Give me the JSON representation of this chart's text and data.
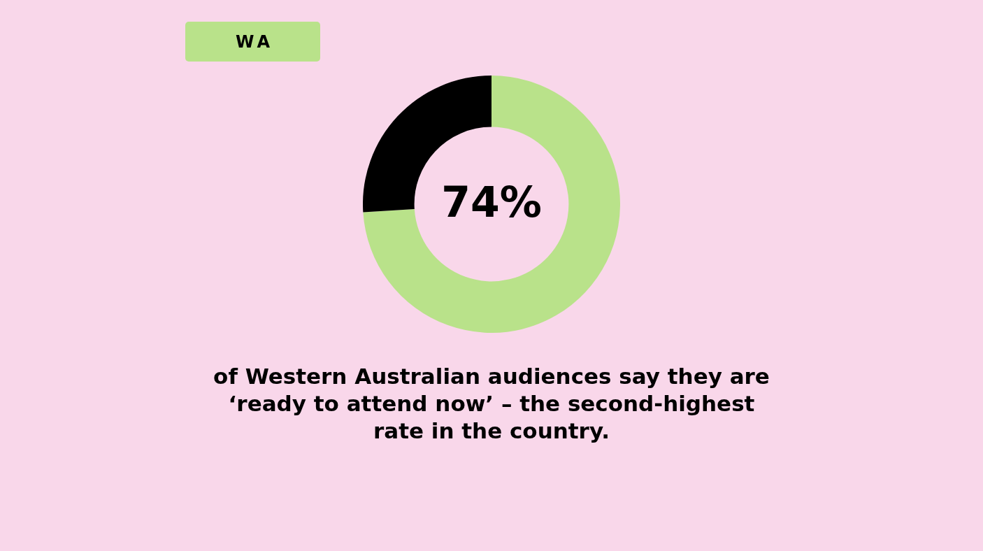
{
  "chart_data": {
    "type": "donut",
    "title": "WA",
    "categories": [
      null,
      null
    ],
    "values": [
      74,
      26
    ],
    "colors": [
      "#b9e28a",
      "#000000"
    ],
    "value_labels": [
      "74%",
      null
    ],
    "annotations": [
      "of Western Australian audiences say they are ‘ready to attend now’ – the second-highest rate in the country."
    ]
  }
}
